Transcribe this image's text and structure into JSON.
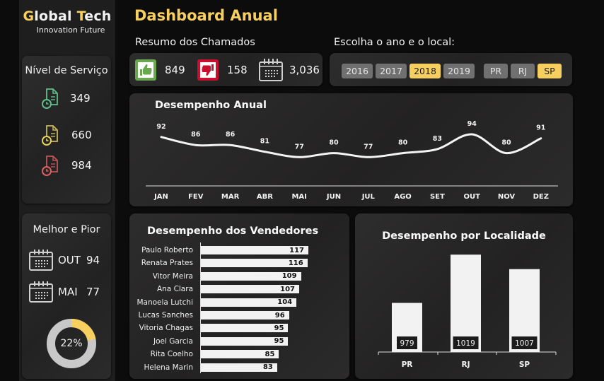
{
  "brand": {
    "title_first_letter": "G",
    "title_part1": "lobal ",
    "title_second_letter": "T",
    "title_part2": "ech",
    "subtitle": "Innovation Future"
  },
  "page_title": "Dashboard Anual",
  "service_level": {
    "title": "Nível de Serviço",
    "items": [
      {
        "icon": "document-clock-icon",
        "color": "#5fbf8a",
        "value": "349"
      },
      {
        "icon": "document-clock-icon",
        "color": "#c9b85a",
        "value": "660"
      },
      {
        "icon": "document-clock-icon",
        "color": "#d05a5a",
        "value": "984"
      }
    ]
  },
  "best_worst": {
    "title": "Melhor e Pior",
    "best": {
      "icon": "calendar-icon",
      "month": "OUT",
      "value": "94"
    },
    "worst": {
      "icon": "calendar-icon",
      "month": "MAI",
      "value": "77"
    },
    "gauge": {
      "percent": 22,
      "label": "22%",
      "fill_color": "#f7cf5e",
      "track_color": "#c8c8c8"
    }
  },
  "summary": {
    "title": "Resumo dos Chamados",
    "items": [
      {
        "icon": "thumbs-up-icon",
        "color": "#6aa84f",
        "value": "849"
      },
      {
        "icon": "thumbs-down-icon",
        "color": "#c8102e",
        "value": "158"
      },
      {
        "icon": "calendar-icon",
        "color": "#d0d0d0",
        "value": "3,036"
      }
    ]
  },
  "filters": {
    "title": "Escolha o ano e o local:",
    "years": [
      {
        "label": "2016",
        "active": false
      },
      {
        "label": "2017",
        "active": false
      },
      {
        "label": "2018",
        "active": true
      },
      {
        "label": "2019",
        "active": false
      }
    ],
    "locations": [
      {
        "label": "PR",
        "active": false
      },
      {
        "label": "RJ",
        "active": false
      },
      {
        "label": "SP",
        "active": true
      }
    ]
  },
  "colors": {
    "accent": "#f7cf5e",
    "background": "#0c0c0c",
    "sidebar": "#1e1e1e",
    "card": "#262525"
  },
  "chart_data": [
    {
      "type": "line",
      "title": "Desempenho Anual",
      "categories": [
        "JAN",
        "FEV",
        "MAR",
        "ABR",
        "MAI",
        "JUN",
        "JUL",
        "AGO",
        "SET",
        "OUT",
        "NOV",
        "DEZ"
      ],
      "values": [
        92,
        86,
        86,
        81,
        77,
        80,
        77,
        80,
        83,
        94,
        80,
        91
      ],
      "xlabel": "",
      "ylabel": "",
      "grid": false,
      "data_labels": true,
      "smooth": true
    },
    {
      "type": "bar",
      "orientation": "horizontal",
      "title": "Desempenho dos Vendedores",
      "categories": [
        "Paulo Roberto",
        "Renata Prates",
        "Vitor Meira",
        "Ana Clara",
        "Manoela Lutchi",
        "Lucas Sanches",
        "Vitoria Chagas",
        "Joel Garcia",
        "Rita Coelho",
        "Helena Marin"
      ],
      "values": [
        117,
        116,
        109,
        107,
        104,
        96,
        95,
        95,
        85,
        83
      ],
      "data_labels": true
    },
    {
      "type": "bar",
      "title": "Desempenho por Localidade",
      "categories": [
        "PR",
        "RJ",
        "SP"
      ],
      "values": [
        979,
        1019,
        1007
      ],
      "data_labels": true
    }
  ]
}
